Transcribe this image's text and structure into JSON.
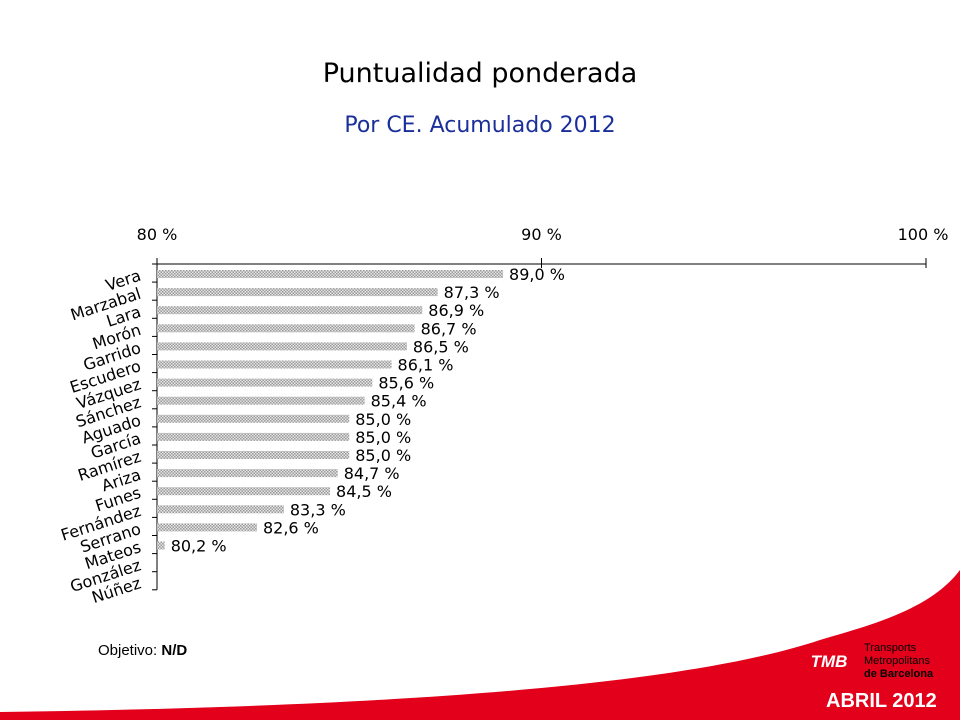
{
  "title": "Puntualidad ponderada",
  "subtitle": "Por CE. Acumulado 2012",
  "objective": {
    "label": "Objetivo:",
    "value": "N/D"
  },
  "logo": {
    "badge": "TMB",
    "line1": "Transports",
    "line2": "Metropolitans",
    "line3": "de Barcelona"
  },
  "date_label": "ABRIL 2012",
  "colors": {
    "frame_red": "#e3001b",
    "subtitle": "#1b2f9a",
    "bar": "#b0b0b0"
  },
  "chart_data": {
    "type": "bar",
    "orientation": "horizontal",
    "title": "Puntualidad ponderada",
    "subtitle": "Por CE. Acumulado 2012",
    "xlim": [
      80,
      100
    ],
    "ticks": [
      80,
      90,
      100
    ],
    "tick_labels": [
      "80 %",
      "90 %",
      "100 %"
    ],
    "categories": [
      "Vera",
      "Marzabal",
      "Lara",
      "Morón",
      "Garrido",
      "Escudero",
      "Vázquez",
      "Sánchez",
      "Aguado",
      "García",
      "Ramírez",
      "Ariza",
      "Funes",
      "Fernández",
      "Serrano",
      "Mateos",
      "González",
      "Núñez"
    ],
    "values": [
      89.0,
      87.3,
      86.9,
      86.7,
      86.5,
      86.1,
      85.6,
      85.4,
      85.0,
      85.0,
      85.0,
      84.7,
      84.5,
      83.3,
      82.6,
      80.2,
      null,
      null
    ],
    "data_labels": [
      "89,0 %",
      "87,3 %",
      "86,9 %",
      "86,7 %",
      "86,5 %",
      "86,1 %",
      "85,6 %",
      "85,4 %",
      "85,0 %",
      "85,0 %",
      "85,0 %",
      "84,7 %",
      "84,5 %",
      "83,3 %",
      "82,6 %",
      "80,2 %",
      "",
      ""
    ],
    "grid": false,
    "legend": "none"
  }
}
